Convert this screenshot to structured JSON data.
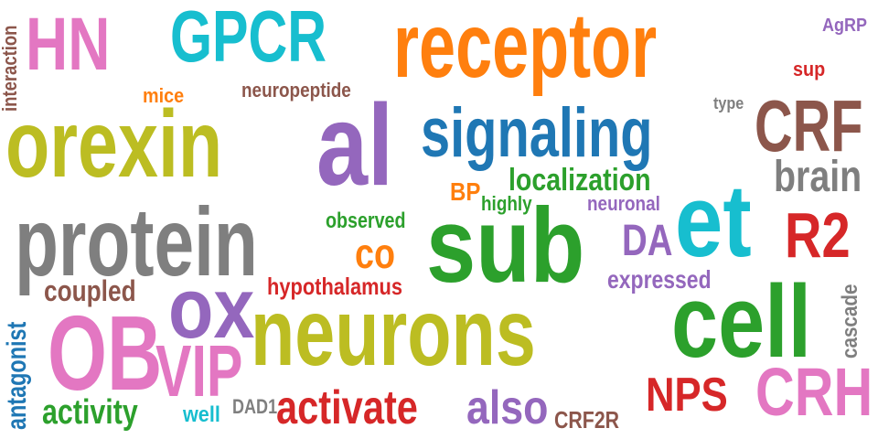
{
  "palette": {
    "orange": "#ff7f0e",
    "teal": "#17becf",
    "pink": "#e377c2",
    "olive": "#bcbd22",
    "purple": "#9467bd",
    "blue": "#1f77b4",
    "brown": "#8c564b",
    "gray": "#7f7f7f",
    "green": "#2ca02c",
    "red": "#d62728"
  },
  "words": [
    {
      "text": "HN",
      "color": "#e377c2"
    },
    {
      "text": "GPCR",
      "color": "#17becf"
    },
    {
      "text": "receptor",
      "color": "#ff7f0e"
    },
    {
      "text": "AgRP",
      "color": "#9467bd"
    },
    {
      "text": "sup",
      "color": "#d62728"
    },
    {
      "text": "interaction",
      "color": "#8c564b"
    },
    {
      "text": "mice",
      "color": "#ff7f0e"
    },
    {
      "text": "neuropeptide",
      "color": "#8c564b"
    },
    {
      "text": "type",
      "color": "#7f7f7f"
    },
    {
      "text": "orexin",
      "color": "#bcbd22"
    },
    {
      "text": "al",
      "color": "#9467bd"
    },
    {
      "text": "signaling",
      "color": "#1f77b4"
    },
    {
      "text": "CRF",
      "color": "#8c564b"
    },
    {
      "text": "brain",
      "color": "#7f7f7f"
    },
    {
      "text": "localization",
      "color": "#2ca02c"
    },
    {
      "text": "BP",
      "color": "#ff7f0e"
    },
    {
      "text": "highly",
      "color": "#2ca02c"
    },
    {
      "text": "neuronal",
      "color": "#9467bd"
    },
    {
      "text": "protein",
      "color": "#7f7f7f"
    },
    {
      "text": "observed",
      "color": "#2ca02c"
    },
    {
      "text": "sub",
      "color": "#2ca02c"
    },
    {
      "text": "et",
      "color": "#17becf"
    },
    {
      "text": "R2",
      "color": "#d62728"
    },
    {
      "text": "DA",
      "color": "#9467bd"
    },
    {
      "text": "co",
      "color": "#ff7f0e"
    },
    {
      "text": "expressed",
      "color": "#9467bd"
    },
    {
      "text": "cascade",
      "color": "#7f7f7f"
    },
    {
      "text": "antagonist",
      "color": "#1f77b4"
    },
    {
      "text": "coupled",
      "color": "#8c564b"
    },
    {
      "text": "ox",
      "color": "#9467bd"
    },
    {
      "text": "hypothalamus",
      "color": "#d62728"
    },
    {
      "text": "neurons",
      "color": "#bcbd22"
    },
    {
      "text": "cell",
      "color": "#2ca02c"
    },
    {
      "text": "OB",
      "color": "#e377c2"
    },
    {
      "text": "VIP",
      "color": "#e377c2"
    },
    {
      "text": "NPS",
      "color": "#d62728"
    },
    {
      "text": "CRH",
      "color": "#e377c2"
    },
    {
      "text": "activity",
      "color": "#2ca02c"
    },
    {
      "text": "well",
      "color": "#17becf"
    },
    {
      "text": "DAD1",
      "color": "#7f7f7f"
    },
    {
      "text": "activate",
      "color": "#d62728"
    },
    {
      "text": "also",
      "color": "#9467bd"
    },
    {
      "text": "CRF2R",
      "color": "#8c564b"
    }
  ]
}
